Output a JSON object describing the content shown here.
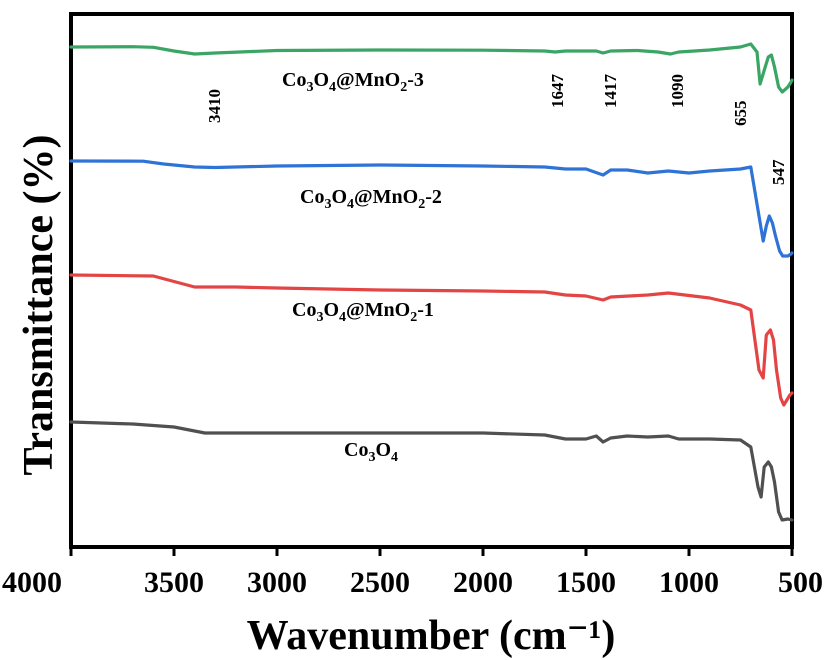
{
  "chart_data": {
    "type": "line",
    "xlabel": "Wavenumber (cm⁻¹)",
    "ylabel": "Transmittance (%)",
    "xlim": [
      4000,
      500
    ],
    "x_reversed": true,
    "y_ticks_shown": false,
    "grid": false,
    "legend": "none (labels placed next to each curve)",
    "x_ticks": [
      4000,
      3500,
      3000,
      2500,
      2000,
      1500,
      1000,
      500
    ],
    "x_tick_labels": [
      "4000",
      "3500",
      "3000",
      "2500",
      "2000",
      "1500",
      "1000",
      "500"
    ],
    "series": [
      {
        "name": "Co3O4@MnO2-3",
        "label_main": "Co",
        "label_sub1": "3",
        "label_mid": "O",
        "label_sub2": "4",
        "label_tail": "@MnO",
        "label_sub3": "2",
        "label_end": "-3",
        "color": "#3aa564",
        "points": [
          [
            4000,
            0
          ],
          [
            3700,
            -0.3
          ],
          [
            3600,
            0.3
          ],
          [
            3500,
            4
          ],
          [
            3400,
            7
          ],
          [
            3300,
            6
          ],
          [
            3000,
            3.5
          ],
          [
            2500,
            3
          ],
          [
            2000,
            3.2
          ],
          [
            1700,
            4
          ],
          [
            1650,
            5
          ],
          [
            1600,
            4
          ],
          [
            1450,
            4
          ],
          [
            1417,
            6
          ],
          [
            1380,
            4
          ],
          [
            1250,
            3.5
          ],
          [
            1150,
            5
          ],
          [
            1090,
            7
          ],
          [
            1050,
            5
          ],
          [
            900,
            3
          ],
          [
            750,
            0
          ],
          [
            700,
            -3
          ],
          [
            670,
            5
          ],
          [
            655,
            37
          ],
          [
            630,
            20
          ],
          [
            615,
            10
          ],
          [
            600,
            8
          ],
          [
            585,
            20
          ],
          [
            565,
            40
          ],
          [
            547,
            45
          ],
          [
            520,
            40
          ],
          [
            505,
            35
          ],
          [
            500,
            33
          ]
        ]
      },
      {
        "name": "Co3O4@MnO2-2",
        "label_main": "Co",
        "label_sub1": "3",
        "label_mid": "O",
        "label_sub2": "4",
        "label_tail": "@MnO",
        "label_sub3": "2",
        "label_end": "-2",
        "color": "#2f73d6",
        "points": [
          [
            4000,
            0
          ],
          [
            3650,
            0.2
          ],
          [
            3550,
            3
          ],
          [
            3400,
            6
          ],
          [
            3300,
            6.5
          ],
          [
            3000,
            5
          ],
          [
            2500,
            4
          ],
          [
            2000,
            5
          ],
          [
            1700,
            6
          ],
          [
            1600,
            8
          ],
          [
            1500,
            8
          ],
          [
            1417,
            14
          ],
          [
            1380,
            9
          ],
          [
            1300,
            9
          ],
          [
            1200,
            12
          ],
          [
            1100,
            10
          ],
          [
            1000,
            12
          ],
          [
            900,
            10
          ],
          [
            750,
            8
          ],
          [
            700,
            6
          ],
          [
            660,
            55
          ],
          [
            640,
            80
          ],
          [
            625,
            65
          ],
          [
            610,
            55
          ],
          [
            595,
            62
          ],
          [
            580,
            75
          ],
          [
            560,
            90
          ],
          [
            545,
            95
          ],
          [
            520,
            95
          ],
          [
            505,
            93
          ],
          [
            500,
            92
          ]
        ]
      },
      {
        "name": "Co3O4@MnO2-1",
        "label_main": "Co",
        "label_sub1": "3",
        "label_mid": "O",
        "label_sub2": "4",
        "label_tail": "@MnO",
        "label_sub3": "2",
        "label_end": "-1",
        "color": "#e34545",
        "points": [
          [
            4000,
            0
          ],
          [
            3600,
            1
          ],
          [
            3400,
            12
          ],
          [
            3200,
            12
          ],
          [
            3000,
            13
          ],
          [
            2500,
            15
          ],
          [
            2000,
            16
          ],
          [
            1700,
            17
          ],
          [
            1600,
            20
          ],
          [
            1500,
            21
          ],
          [
            1417,
            25
          ],
          [
            1380,
            22
          ],
          [
            1200,
            20
          ],
          [
            1100,
            18
          ],
          [
            900,
            23
          ],
          [
            750,
            30
          ],
          [
            700,
            35
          ],
          [
            660,
            95
          ],
          [
            640,
            103
          ],
          [
            625,
            60
          ],
          [
            605,
            55
          ],
          [
            590,
            65
          ],
          [
            575,
            95
          ],
          [
            555,
            123
          ],
          [
            540,
            130
          ],
          [
            510,
            120
          ],
          [
            500,
            118
          ]
        ]
      },
      {
        "name": "Co3O4",
        "label_main": "Co",
        "label_sub1": "3",
        "label_mid": "O",
        "label_sub2": "4",
        "label_tail": "",
        "label_sub3": "",
        "label_end": "",
        "color": "#505050",
        "points": [
          [
            4000,
            0
          ],
          [
            3700,
            2
          ],
          [
            3500,
            5
          ],
          [
            3350,
            11
          ],
          [
            3200,
            11
          ],
          [
            3000,
            11
          ],
          [
            2500,
            11
          ],
          [
            2000,
            11
          ],
          [
            1700,
            13
          ],
          [
            1600,
            17
          ],
          [
            1500,
            17
          ],
          [
            1450,
            14
          ],
          [
            1417,
            20
          ],
          [
            1380,
            16
          ],
          [
            1300,
            14
          ],
          [
            1200,
            15
          ],
          [
            1100,
            14
          ],
          [
            1050,
            17
          ],
          [
            900,
            17
          ],
          [
            750,
            18
          ],
          [
            700,
            25
          ],
          [
            665,
            65
          ],
          [
            650,
            75
          ],
          [
            635,
            45
          ],
          [
            615,
            40
          ],
          [
            600,
            45
          ],
          [
            585,
            60
          ],
          [
            565,
            90
          ],
          [
            548,
            98
          ],
          [
            520,
            97
          ],
          [
            500,
            98
          ]
        ]
      }
    ],
    "peak_labels": [
      "3410",
      "1647",
      "1417",
      "1090",
      "655",
      "547"
    ]
  }
}
